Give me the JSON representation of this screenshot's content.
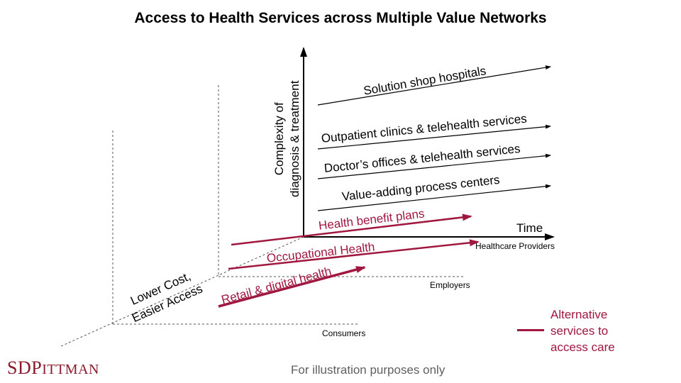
{
  "title": "Access to Health Services across Multiple Value Networks",
  "axes": {
    "y_label_line1": "Complexity of",
    "y_label_line2": "diagnosis & treatment",
    "x_label": "Time",
    "z_label_line1": "Lower Cost,",
    "z_label_line2": "Easier Access"
  },
  "planes": {
    "healthcare_providers": "Healthcare Providers",
    "employers": "Employers",
    "consumers": "Consumers"
  },
  "provider_networks": [
    {
      "label": "Solution shop hospitals",
      "color": "#000000"
    },
    {
      "label": "Outpatient clinics & telehealth services",
      "color": "#000000"
    },
    {
      "label": "Doctor’s offices & telehealth services",
      "color": "#000000"
    },
    {
      "label": "Value-adding process centers",
      "color": "#000000"
    }
  ],
  "alternative_networks": [
    {
      "label": "Health benefit plans",
      "color": "#a0173f"
    },
    {
      "label": "Occupational Health",
      "color": "#a0173f"
    },
    {
      "label": "Retail & digital health",
      "color": "#a0173f"
    }
  ],
  "legend": {
    "line1": "Alternative",
    "line2": "services to",
    "line3": "access care",
    "color": "#a0173f"
  },
  "footer": "For illustration purposes only",
  "logo": {
    "part1": "SDP",
    "part2": "ITTMAN",
    "color": "#8b1a2b"
  }
}
